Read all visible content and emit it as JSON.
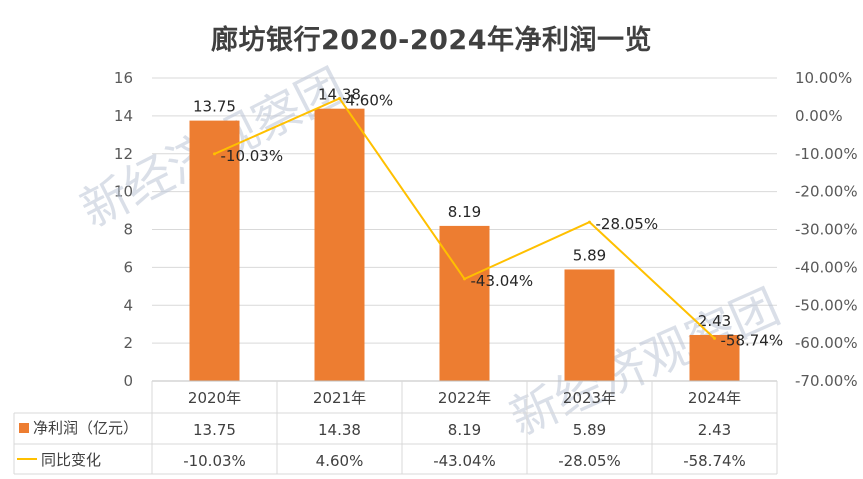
{
  "chart_data": {
    "type": "bar",
    "title": "廊坊银行2020-2024年净利润一览",
    "categories": [
      "2020年",
      "2021年",
      "2022年",
      "2023年",
      "2024年"
    ],
    "series": [
      {
        "name": "净利润（亿元）",
        "type": "bar",
        "axis": "left",
        "color": "#ED7D31",
        "values": [
          13.75,
          14.38,
          8.19,
          5.89,
          2.43
        ],
        "labels": [
          "13.75",
          "14.38",
          "8.19",
          "5.89",
          "2.43"
        ]
      },
      {
        "name": "同比变化",
        "type": "line",
        "axis": "right",
        "color": "#FFC000",
        "values": [
          -10.03,
          4.6,
          -43.04,
          -28.05,
          -58.74
        ],
        "labels": [
          "-10.03%",
          "4.60%",
          "-43.04%",
          "-28.05%",
          "-58.74%"
        ]
      }
    ],
    "y_left": {
      "ylim": [
        0,
        16
      ],
      "ticks": [
        "0",
        "2",
        "4",
        "6",
        "8",
        "10",
        "12",
        "14",
        "16"
      ]
    },
    "y_right": {
      "ylim": [
        -70,
        10
      ],
      "ticks": [
        "-70.00%",
        "-60.00%",
        "-50.00%",
        "-40.00%",
        "-30.00%",
        "-20.00%",
        "-10.00%",
        "0.00%",
        "10.00%"
      ]
    },
    "grid": true,
    "legend": "data-table-below",
    "watermark": "新经济观察团"
  }
}
